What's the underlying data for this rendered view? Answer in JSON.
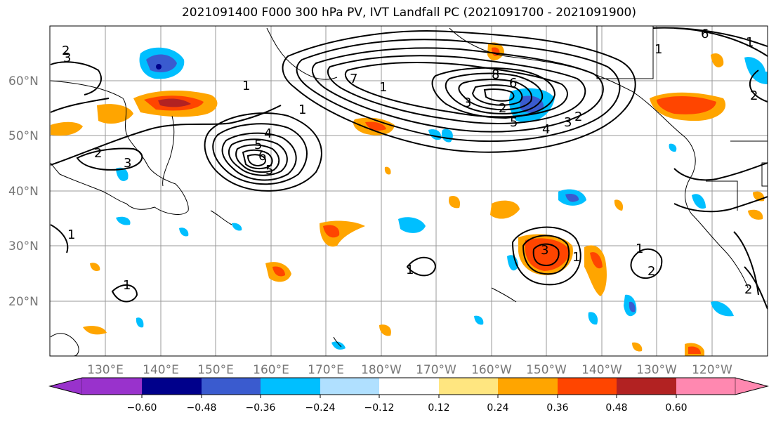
{
  "title": "2021091400 F000 300 hPa PV, IVT Landfall PC (2021091700 - 2021091900)",
  "lat_labels": [
    "60°N",
    "50°N",
    "40°N",
    "30°N",
    "20°N"
  ],
  "lon_labels": [
    "130°E",
    "140°E",
    "150°E",
    "160°E",
    "170°E",
    "180°W",
    "170°W",
    "160°W",
    "150°W",
    "140°W",
    "130°W",
    "120°W"
  ],
  "colorbar": {
    "colors": [
      "#9932cc",
      "#00008b",
      "#3a5bcf",
      "#00bfff",
      "#b0e0ff",
      "#ffffff",
      "#ffe680",
      "#ffa500",
      "#ff4500",
      "#b22222",
      "#ff88b0"
    ],
    "ticks": [
      "−0.60",
      "−0.48",
      "−0.36",
      "−0.24",
      "−0.12",
      "0.12",
      "0.24",
      "0.36",
      "0.48",
      "0.60"
    ]
  },
  "colors": {
    "grid": "#999999",
    "land_outline": "#000000",
    "contour": "#000000"
  },
  "contour_labels": [
    "2",
    "3",
    "1",
    "2",
    "3",
    "4",
    "5",
    "6",
    "1",
    "7",
    "8",
    "6",
    "5",
    "4",
    "3",
    "2",
    "1",
    "6",
    "1",
    "2",
    "3",
    "1",
    "1",
    "2",
    "1",
    "5",
    "1",
    "3",
    "2",
    "1",
    "1",
    "2"
  ]
}
